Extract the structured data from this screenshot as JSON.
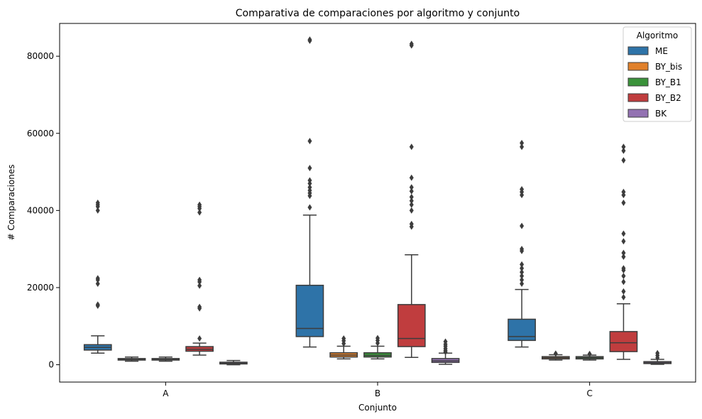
{
  "chart_data": {
    "type": "box",
    "title": "Comparativa de comparaciones por algoritmo y conjunto",
    "xlabel": "Conjunto",
    "ylabel": "# Comparaciones",
    "ylim": [
      -4500,
      88500
    ],
    "yticks": [
      0,
      20000,
      40000,
      60000,
      80000
    ],
    "ytick_labels": [
      "0",
      "20000",
      "40000",
      "60000",
      "80000"
    ],
    "categories": [
      "A",
      "B",
      "C"
    ],
    "grid": false,
    "legend": {
      "title": "Algoritmo",
      "position": "top-right"
    },
    "series": [
      {
        "name": "ME",
        "color": "#2e73a8",
        "boxes": [
          {
            "q1": 3800,
            "median": 4500,
            "q3": 5200,
            "whislo": 3000,
            "whishi": 7500,
            "fliers": [
              15300,
              15600,
              21000,
              22000,
              22400,
              40000,
              41000,
              41500,
              42000
            ]
          },
          {
            "q1": 7300,
            "median": 9400,
            "q3": 20600,
            "whislo": 4600,
            "whishi": 38800,
            "fliers": [
              40800,
              43800,
              44500,
              45200,
              46000,
              47000,
              47800,
              51000,
              58000,
              84000,
              84300
            ]
          },
          {
            "q1": 6300,
            "median": 7300,
            "q3": 11800,
            "whislo": 4600,
            "whishi": 19500,
            "fliers": [
              21000,
              22000,
              23000,
              24000,
              25000,
              26000,
              29500,
              30000,
              36000,
              44000,
              44800,
              45500,
              56500,
              57500
            ]
          }
        ]
      },
      {
        "name": "BY_bis",
        "color": "#e1812c",
        "boxes": [
          {
            "q1": 1200,
            "median": 1400,
            "q3": 1600,
            "whislo": 900,
            "whishi": 2000,
            "fliers": []
          },
          {
            "q1": 2000,
            "median": 2500,
            "q3": 3100,
            "whislo": 1500,
            "whishi": 4800,
            "fliers": [
              5500,
              6200,
              6800
            ]
          },
          {
            "q1": 1500,
            "median": 1800,
            "q3": 2100,
            "whislo": 1200,
            "whishi": 2600,
            "fliers": [
              2900
            ]
          }
        ]
      },
      {
        "name": "BY_B1",
        "color": "#3a923a",
        "boxes": [
          {
            "q1": 1200,
            "median": 1400,
            "q3": 1600,
            "whislo": 900,
            "whishi": 2000,
            "fliers": []
          },
          {
            "q1": 2000,
            "median": 2400,
            "q3": 3100,
            "whislo": 1500,
            "whishi": 4800,
            "fliers": [
              5600,
              6300,
              6900
            ]
          },
          {
            "q1": 1500,
            "median": 1800,
            "q3": 2100,
            "whislo": 1200,
            "whishi": 2500,
            "fliers": [
              2800
            ]
          }
        ]
      },
      {
        "name": "BY_B2",
        "color": "#c03d3e",
        "boxes": [
          {
            "q1": 3500,
            "median": 4000,
            "q3": 4700,
            "whislo": 2500,
            "whishi": 5600,
            "fliers": [
              6800,
              14600,
              15000,
              20500,
              21500,
              22000,
              39500,
              40500,
              41000,
              41500
            ]
          },
          {
            "q1": 4700,
            "median": 6800,
            "q3": 15600,
            "whislo": 1900,
            "whishi": 28500,
            "fliers": [
              35800,
              36500,
              40000,
              41500,
              42500,
              43500,
              45000,
              46000,
              48500,
              56500,
              82800,
              83200
            ]
          },
          {
            "q1": 3400,
            "median": 5700,
            "q3": 8600,
            "whislo": 1400,
            "whishi": 15800,
            "fliers": [
              17500,
              19000,
              21500,
              23000,
              24500,
              25000,
              28000,
              29000,
              32000,
              34000,
              42000,
              44000,
              44800,
              53000,
              55500,
              56500
            ]
          }
        ]
      },
      {
        "name": "BK",
        "color": "#9372b2",
        "boxes": [
          {
            "q1": 200,
            "median": 400,
            "q3": 650,
            "whislo": 0,
            "whishi": 1100,
            "fliers": []
          },
          {
            "q1": 600,
            "median": 1000,
            "q3": 1600,
            "whislo": 100,
            "whishi": 3000,
            "fliers": [
              3300,
              3700,
              4200,
              4800,
              5300,
              6000
            ]
          },
          {
            "q1": 300,
            "median": 500,
            "q3": 800,
            "whislo": 100,
            "whishi": 1400,
            "fliers": [
              1800,
              2400,
              3000
            ]
          }
        ]
      }
    ]
  }
}
